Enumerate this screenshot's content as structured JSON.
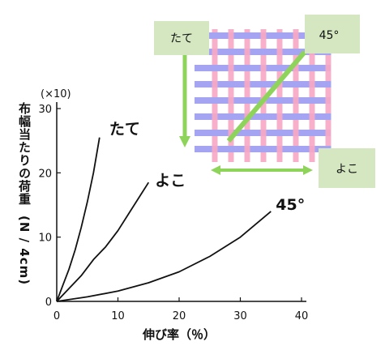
{
  "chart_data": {
    "type": "line",
    "title": "",
    "xlabel": "伸び率（％）",
    "ylabel": "布幅当たりの荷重",
    "ylabel_unit": "(N / 4cm)",
    "y_multiplier": "(×10)",
    "xlim": [
      0,
      40
    ],
    "ylim": [
      0,
      30
    ],
    "x_ticks": [
      "0",
      "10",
      "20",
      "30",
      "40"
    ],
    "y_ticks": [
      "0",
      "10",
      "20",
      "30"
    ],
    "grid": false,
    "series": [
      {
        "name": "たて",
        "x": [
          0,
          1,
          2,
          3,
          4,
          5,
          6,
          7
        ],
        "y": [
          0,
          2.5,
          5,
          8,
          11.5,
          15.5,
          20,
          25.5
        ]
      },
      {
        "name": "よこ",
        "x": [
          0,
          2,
          4,
          6,
          8,
          10,
          12,
          14,
          15
        ],
        "y": [
          0,
          2,
          4,
          6.5,
          8.5,
          11,
          14,
          17,
          18.5
        ]
      },
      {
        "name": "45°",
        "x": [
          0,
          5,
          10,
          15,
          20,
          25,
          30,
          35
        ],
        "y": [
          0,
          0.7,
          1.6,
          2.9,
          4.6,
          7,
          10,
          14
        ]
      }
    ]
  },
  "diagram": {
    "vertical_thread_color": "#f7a8c4",
    "horizontal_thread_color": "#a4a4f2",
    "arrow_color": "#8ed35a",
    "label_box_color": "#d4e7c0",
    "labels": {
      "vertical": "たて",
      "bias": "45°",
      "horizontal": "よこ"
    }
  }
}
